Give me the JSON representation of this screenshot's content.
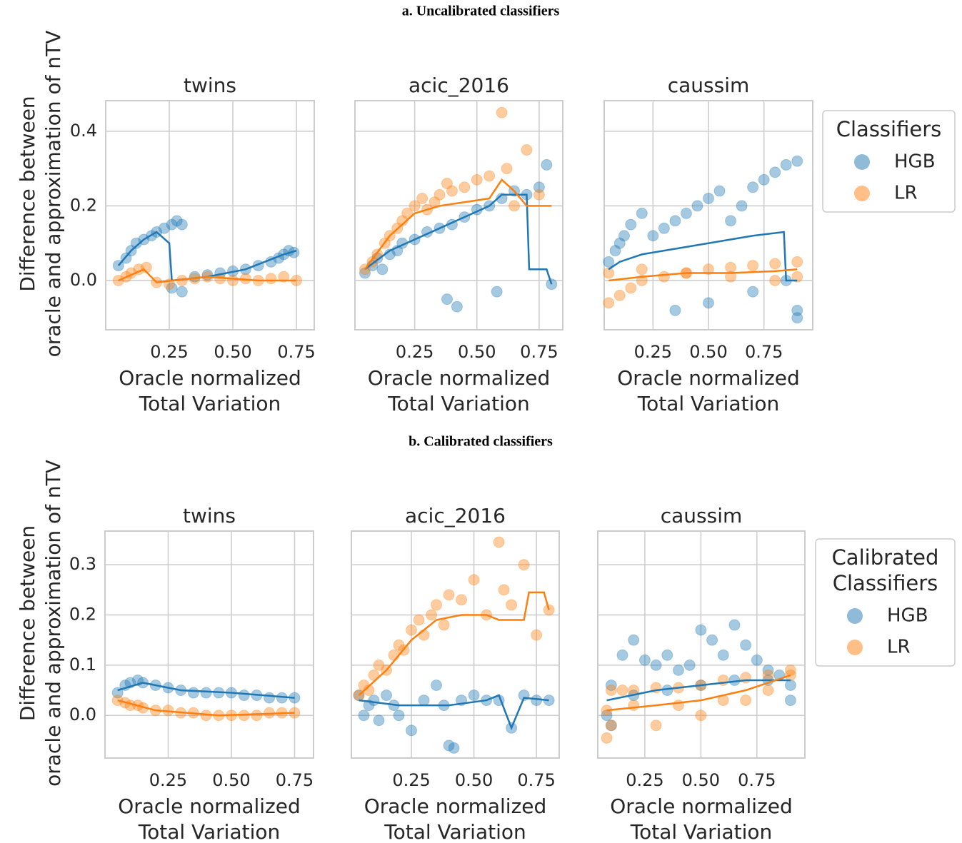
{
  "chart_data": [
    {
      "type": "scatter",
      "suptitle": "a. Uncalibrated classifiers",
      "title": "twins",
      "xlabel": [
        "Oracle normalized",
        "Total Variation"
      ],
      "ylabel": [
        "Difference between",
        "oracle and approximation of nTV"
      ],
      "xlim": [
        0,
        0.82
      ],
      "ylim": [
        -0.132,
        0.482
      ],
      "xticks": [
        0.25,
        {
          "value": 0.5,
          "label": "0.50"
        },
        0.75
      ],
      "yticks": [
        {
          "value": 0,
          "label": "0.0"
        },
        0.2,
        0.4
      ],
      "grid": true,
      "series": [
        {
          "name": "HGB",
          "color": "#1f77b4",
          "x": [
            0.05,
            0.08,
            0.1,
            0.12,
            0.15,
            0.18,
            0.2,
            0.23,
            0.26,
            0.28,
            0.3,
            0.35,
            0.4,
            0.45,
            0.5,
            0.55,
            0.6,
            0.65,
            0.68,
            0.7,
            0.72,
            0.74,
            0.26,
            0.3
          ],
          "values": [
            0.04,
            0.06,
            0.08,
            0.1,
            0.11,
            0.12,
            0.13,
            0.14,
            0.15,
            0.16,
            0.15,
            0.01,
            0.015,
            0.02,
            0.025,
            0.03,
            0.04,
            0.05,
            0.06,
            0.07,
            0.08,
            0.075,
            -0.02,
            -0.03
          ],
          "trend_x": [
            0.05,
            0.1,
            0.15,
            0.2,
            0.25,
            0.26,
            0.4,
            0.55,
            0.7,
            0.75
          ],
          "trend": [
            0.04,
            0.08,
            0.11,
            0.13,
            0.1,
            0,
            0.01,
            0.03,
            0.07,
            0.08
          ]
        },
        {
          "name": "LR",
          "color": "#ff7f0e",
          "x": [
            0.05,
            0.08,
            0.1,
            0.13,
            0.16,
            0.2,
            0.25,
            0.3,
            0.35,
            0.4,
            0.45,
            0.5,
            0.55,
            0.6,
            0.65,
            0.7,
            0.75
          ],
          "values": [
            0,
            0.01,
            0.02,
            0.03,
            0.035,
            -0.005,
            -0.01,
            0,
            0.005,
            0.01,
            0.005,
            0,
            0.005,
            0,
            0.005,
            0.01,
            0
          ],
          "trend_x": [
            0.05,
            0.15,
            0.2,
            0.4,
            0.6,
            0.75
          ],
          "trend": [
            0,
            0.03,
            -0.005,
            0.01,
            0,
            0
          ]
        }
      ]
    },
    {
      "type": "scatter",
      "title": "acic_2016",
      "xlabel": [
        "Oracle normalized",
        "Total Variation"
      ],
      "xlim": [
        0.01,
        0.845
      ],
      "ylim": [
        -0.132,
        0.482
      ],
      "xticks": [
        0.25,
        {
          "value": 0.5,
          "label": "0.50"
        },
        0.75
      ],
      "yticks": [
        0,
        0.2,
        0.4
      ],
      "grid": true,
      "series": [
        {
          "name": "HGB",
          "color": "#1f77b4",
          "x": [
            0.05,
            0.08,
            0.1,
            0.12,
            0.15,
            0.18,
            0.2,
            0.25,
            0.3,
            0.35,
            0.38,
            0.4,
            0.42,
            0.45,
            0.5,
            0.55,
            0.58,
            0.6,
            0.65,
            0.7,
            0.75,
            0.78,
            0.8
          ],
          "values": [
            0.02,
            0.04,
            0.06,
            0.03,
            0.07,
            0.08,
            0.1,
            0.11,
            0.13,
            0.14,
            -0.05,
            0.15,
            -0.07,
            0.17,
            0.19,
            0.2,
            -0.03,
            0.22,
            0.24,
            0.23,
            0.25,
            0.31,
            -0.01
          ],
          "trend_x": [
            0.05,
            0.15,
            0.25,
            0.35,
            0.45,
            0.55,
            0.6,
            0.7,
            0.71,
            0.78,
            0.8
          ],
          "trend": [
            0.03,
            0.08,
            0.11,
            0.14,
            0.17,
            0.2,
            0.23,
            0.23,
            0.03,
            0.03,
            -0.01
          ]
        },
        {
          "name": "LR",
          "color": "#ff7f0e",
          "x": [
            0.05,
            0.08,
            0.1,
            0.13,
            0.15,
            0.18,
            0.2,
            0.22,
            0.25,
            0.28,
            0.3,
            0.33,
            0.35,
            0.38,
            0.4,
            0.45,
            0.5,
            0.55,
            0.6,
            0.62,
            0.65,
            0.7,
            0.75
          ],
          "values": [
            0.03,
            0.05,
            0.07,
            0.1,
            0.12,
            0.14,
            0.16,
            0.18,
            0.2,
            0.22,
            0.19,
            0.21,
            0.23,
            0.26,
            0.24,
            0.25,
            0.27,
            0.28,
            0.45,
            0.3,
            0.2,
            0.35,
            0.23
          ],
          "trend_x": [
            0.05,
            0.15,
            0.25,
            0.35,
            0.45,
            0.55,
            0.6,
            0.65,
            0.7,
            0.8
          ],
          "trend": [
            0.03,
            0.12,
            0.18,
            0.2,
            0.21,
            0.22,
            0.27,
            0.24,
            0.2,
            0.2
          ]
        }
      ]
    },
    {
      "type": "scatter",
      "title": "caussim",
      "legend_title": [
        "Classifiers"
      ],
      "xlabel": [
        "Oracle normalized",
        "Total Variation"
      ],
      "xlim": [
        0.03,
        0.97
      ],
      "ylim": [
        -0.132,
        0.482
      ],
      "xticks": [
        0.25,
        {
          "value": 0.5,
          "label": "0.50"
        },
        0.75
      ],
      "yticks": [
        0,
        0.2,
        0.4
      ],
      "grid": true,
      "series": [
        {
          "name": "HGB",
          "color": "#1f77b4",
          "x": [
            0.05,
            0.08,
            0.1,
            0.12,
            0.15,
            0.2,
            0.25,
            0.3,
            0.35,
            0.4,
            0.45,
            0.5,
            0.55,
            0.6,
            0.65,
            0.7,
            0.75,
            0.8,
            0.85,
            0.9,
            0.9,
            0.35,
            0.5,
            0.7,
            0.85,
            0.9
          ],
          "values": [
            0.05,
            0.08,
            0.1,
            0.12,
            0.15,
            0.18,
            0.12,
            0.14,
            0.16,
            0.18,
            0.2,
            0.22,
            0.24,
            0.16,
            0.2,
            0.25,
            0.27,
            0.29,
            0.31,
            0.32,
            -0.08,
            -0.08,
            -0.06,
            -0.03,
            0,
            -0.1
          ],
          "trend_x": [
            0.05,
            0.1,
            0.2,
            0.3,
            0.5,
            0.7,
            0.84,
            0.85,
            0.9
          ],
          "trend": [
            0.03,
            0.05,
            0.07,
            0.08,
            0.1,
            0.12,
            0.13,
            0.0,
            0.0
          ]
        },
        {
          "name": "LR",
          "color": "#ff7f0e",
          "x": [
            0.05,
            0.1,
            0.15,
            0.2,
            0.3,
            0.4,
            0.5,
            0.6,
            0.7,
            0.8,
            0.9,
            0.05,
            0.2,
            0.4,
            0.6,
            0.8,
            0.9
          ],
          "values": [
            -0.06,
            -0.04,
            -0.02,
            0,
            0.01,
            0.02,
            0.03,
            0.035,
            0.04,
            0.045,
            0.05,
            0.02,
            0.03,
            0.02,
            0.01,
            0,
            0.01
          ],
          "trend_x": [
            0.05,
            0.2,
            0.4,
            0.6,
            0.8,
            0.9
          ],
          "trend": [
            0,
            0.01,
            0.02,
            0.02,
            0.025,
            0.03
          ]
        }
      ]
    },
    {
      "type": "scatter",
      "suptitle": "b. Calibrated classifiers",
      "title": "twins",
      "xlabel": [
        "Oracle normalized",
        "Total Variation"
      ],
      "ylabel": [
        "Difference between",
        "oracle and approximation of nTV"
      ],
      "xlim": [
        0,
        0.825
      ],
      "ylim": [
        -0.085,
        0.367
      ],
      "xticks": [
        0.25,
        {
          "value": 0.5,
          "label": "0.50"
        },
        0.75
      ],
      "yticks": [
        {
          "value": 0,
          "label": "0.0"
        },
        0.1,
        0.2,
        0.3
      ],
      "grid": true,
      "series": [
        {
          "name": "HGB",
          "color": "#1f77b4",
          "x": [
            0.05,
            0.08,
            0.1,
            0.13,
            0.15,
            0.2,
            0.25,
            0.3,
            0.35,
            0.4,
            0.45,
            0.5,
            0.55,
            0.6,
            0.65,
            0.7,
            0.75
          ],
          "values": [
            0.045,
            0.06,
            0.065,
            0.07,
            0.065,
            0.06,
            0.055,
            0.05,
            0.045,
            0.045,
            0.045,
            0.045,
            0.04,
            0.04,
            0.035,
            0.035,
            0.035
          ],
          "trend_x": [
            0.05,
            0.15,
            0.3,
            0.5,
            0.75
          ],
          "trend": [
            0.05,
            0.065,
            0.05,
            0.045,
            0.035
          ]
        },
        {
          "name": "LR",
          "color": "#ff7f0e",
          "x": [
            0.05,
            0.08,
            0.1,
            0.13,
            0.15,
            0.2,
            0.25,
            0.3,
            0.35,
            0.4,
            0.45,
            0.5,
            0.55,
            0.6,
            0.65,
            0.7,
            0.75
          ],
          "values": [
            0.03,
            0.025,
            0.02,
            0.02,
            0.015,
            0.01,
            0.01,
            0.005,
            0.005,
            0,
            0,
            0,
            0,
            0,
            0.005,
            0.005,
            0.005
          ],
          "trend_x": [
            0.05,
            0.2,
            0.45,
            0.75
          ],
          "trend": [
            0.03,
            0.01,
            0,
            0.005
          ]
        }
      ]
    },
    {
      "type": "scatter",
      "title": "acic_2016",
      "xlabel": [
        "Oracle normalized",
        "Total Variation"
      ],
      "xlim": [
        0.01,
        0.841
      ],
      "ylim": [
        -0.085,
        0.367
      ],
      "xticks": [
        0.25,
        {
          "value": 0.5,
          "label": "0.50"
        },
        0.75
      ],
      "yticks": [
        0,
        0.1,
        0.2,
        0.3
      ],
      "grid": true,
      "series": [
        {
          "name": "HGB",
          "color": "#1f77b4",
          "x": [
            0.04,
            0.06,
            0.08,
            0.1,
            0.12,
            0.15,
            0.18,
            0.2,
            0.25,
            0.3,
            0.35,
            0.38,
            0.4,
            0.42,
            0.45,
            0.5,
            0.55,
            0.6,
            0.65,
            0.7,
            0.75,
            0.8
          ],
          "values": [
            0.04,
            0.0,
            0.02,
            0.03,
            -0.01,
            0.04,
            0.02,
            0.0,
            -0.03,
            0.03,
            0.06,
            0.02,
            -0.06,
            -0.065,
            0.03,
            0.04,
            0.03,
            0.03,
            -0.025,
            0.04,
            0.03,
            0.03
          ],
          "trend_x": [
            0.04,
            0.2,
            0.4,
            0.55,
            0.6,
            0.65,
            0.7,
            0.8
          ],
          "trend": [
            0.03,
            0.02,
            0.02,
            0.03,
            0.04,
            -0.025,
            0.035,
            0.03
          ]
        },
        {
          "name": "LR",
          "color": "#ff7f0e",
          "x": [
            0.04,
            0.06,
            0.08,
            0.1,
            0.12,
            0.15,
            0.18,
            0.2,
            0.22,
            0.25,
            0.28,
            0.3,
            0.33,
            0.35,
            0.38,
            0.4,
            0.45,
            0.5,
            0.55,
            0.6,
            0.62,
            0.65,
            0.7,
            0.75,
            0.8
          ],
          "values": [
            0.04,
            0.06,
            0.05,
            0.08,
            0.1,
            0.09,
            0.12,
            0.14,
            0.13,
            0.17,
            0.19,
            0.16,
            0.2,
            0.22,
            0.18,
            0.24,
            0.23,
            0.27,
            0.2,
            0.345,
            0.25,
            0.22,
            0.3,
            0.16,
            0.21
          ],
          "trend_x": [
            0.04,
            0.15,
            0.25,
            0.35,
            0.45,
            0.55,
            0.6,
            0.7,
            0.72,
            0.78,
            0.8
          ],
          "trend": [
            0.04,
            0.09,
            0.15,
            0.19,
            0.2,
            0.2,
            0.19,
            0.19,
            0.245,
            0.245,
            0.21
          ]
        }
      ]
    },
    {
      "type": "scatter",
      "title": "caussim",
      "legend_title": [
        "Calibrated",
        "Classifiers"
      ],
      "xlabel": [
        "Oracle normalized",
        "Total Variation"
      ],
      "xlim": [
        0.04,
        0.964
      ],
      "ylim": [
        -0.085,
        0.367
      ],
      "xticks": [
        0.25,
        {
          "value": 0.5,
          "label": "0.50"
        },
        0.75
      ],
      "yticks": [
        0,
        0.1,
        0.2,
        0.3
      ],
      "grid": true,
      "series": [
        {
          "name": "HGB",
          "color": "#1f77b4",
          "x": [
            0.08,
            0.1,
            0.15,
            0.2,
            0.25,
            0.3,
            0.35,
            0.4,
            0.45,
            0.5,
            0.55,
            0.6,
            0.65,
            0.7,
            0.75,
            0.8,
            0.85,
            0.9,
            0.1,
            0.2,
            0.35,
            0.5,
            0.65,
            0.8,
            0.9
          ],
          "values": [
            0.0,
            0.06,
            0.12,
            0.15,
            0.11,
            0.1,
            0.12,
            0.09,
            0.1,
            0.17,
            0.15,
            0.12,
            0.18,
            0.14,
            0.11,
            0.09,
            0.08,
            0.06,
            -0.02,
            0.04,
            0.05,
            0.06,
            0.07,
            0.07,
            0.03
          ],
          "trend_x": [
            0.08,
            0.3,
            0.5,
            0.7,
            0.9
          ],
          "trend": [
            0.03,
            0.05,
            0.06,
            0.07,
            0.07
          ]
        },
        {
          "name": "LR",
          "color": "#ff7f0e",
          "x": [
            0.08,
            0.1,
            0.15,
            0.2,
            0.3,
            0.4,
            0.5,
            0.6,
            0.7,
            0.8,
            0.9,
            0.08,
            0.2,
            0.4,
            0.6,
            0.8,
            0.9,
            0.1,
            0.3,
            0.5,
            0.7
          ],
          "values": [
            -0.045,
            0.05,
            0.05,
            0.05,
            0.055,
            0.055,
            0.06,
            0.07,
            0.075,
            0.08,
            0.09,
            0.01,
            0.02,
            0.02,
            0.03,
            0.05,
            0.08,
            -0.02,
            -0.02,
            0.0,
            0.03
          ],
          "trend_x": [
            0.08,
            0.3,
            0.5,
            0.7,
            0.9
          ],
          "trend": [
            0.01,
            0.02,
            0.03,
            0.05,
            0.08
          ]
        }
      ]
    }
  ]
}
